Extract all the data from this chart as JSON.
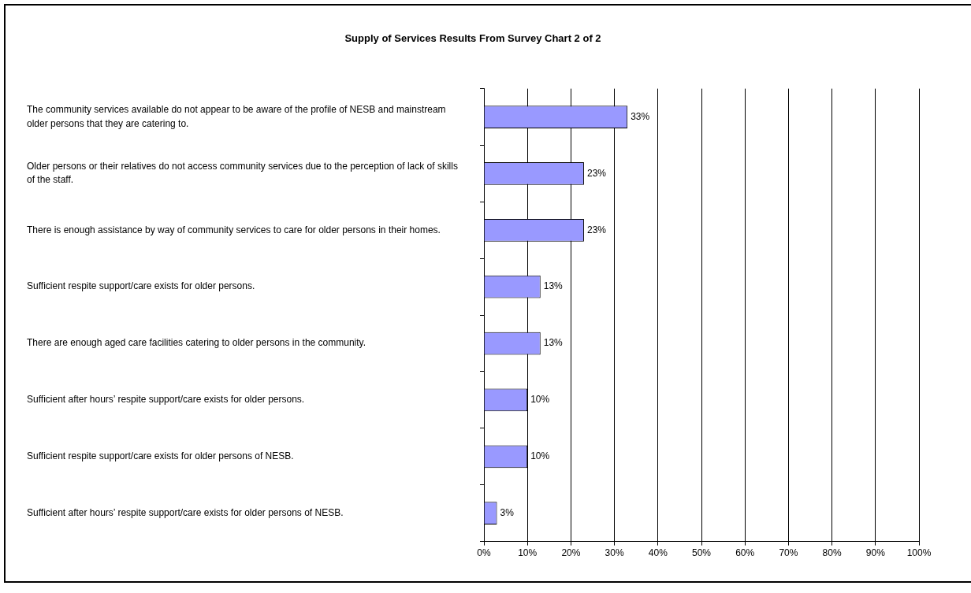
{
  "chart_data": {
    "type": "bar",
    "orientation": "horizontal",
    "title": "Supply of Services Results From Survey Chart 2 of 2",
    "categories": [
      "The community services available do not appear to be aware of the profile of NESB and mainstream older persons that they are catering to.",
      "Older persons or their relatives do not access community services due to the perception of lack of skills of the staff.",
      "There is enough assistance by way of community services to care for older persons in their homes.",
      "Sufficient respite support/care exists for older persons.",
      "There are enough aged care facilities catering to older persons in the community.",
      "Sufficient after hours’ respite support/care exists for older persons.",
      "Sufficient respite support/care exists for older persons of NESB.",
      "Sufficient after hours’ respite support/care exists for older persons of NESB."
    ],
    "values": [
      33,
      23,
      23,
      13,
      13,
      10,
      10,
      3
    ],
    "value_labels": [
      "33%",
      "23%",
      "23%",
      "13%",
      "13%",
      "10%",
      "10%",
      "3%"
    ],
    "color": "#9999ff",
    "xlim": [
      0,
      100
    ],
    "xticks": [
      {
        "value": 0,
        "label": "0%"
      },
      {
        "value": 10,
        "label": "10%"
      },
      {
        "value": 20,
        "label": "20%"
      },
      {
        "value": 30,
        "label": "30%"
      },
      {
        "value": 40,
        "label": "40%"
      },
      {
        "value": 50,
        "label": "50%"
      },
      {
        "value": 60,
        "label": "60%"
      },
      {
        "value": 70,
        "label": "70%"
      },
      {
        "value": 80,
        "label": "80%"
      },
      {
        "value": 90,
        "label": "90%"
      },
      {
        "value": 100,
        "label": "100%"
      }
    ],
    "grid": "x",
    "legend": false
  }
}
